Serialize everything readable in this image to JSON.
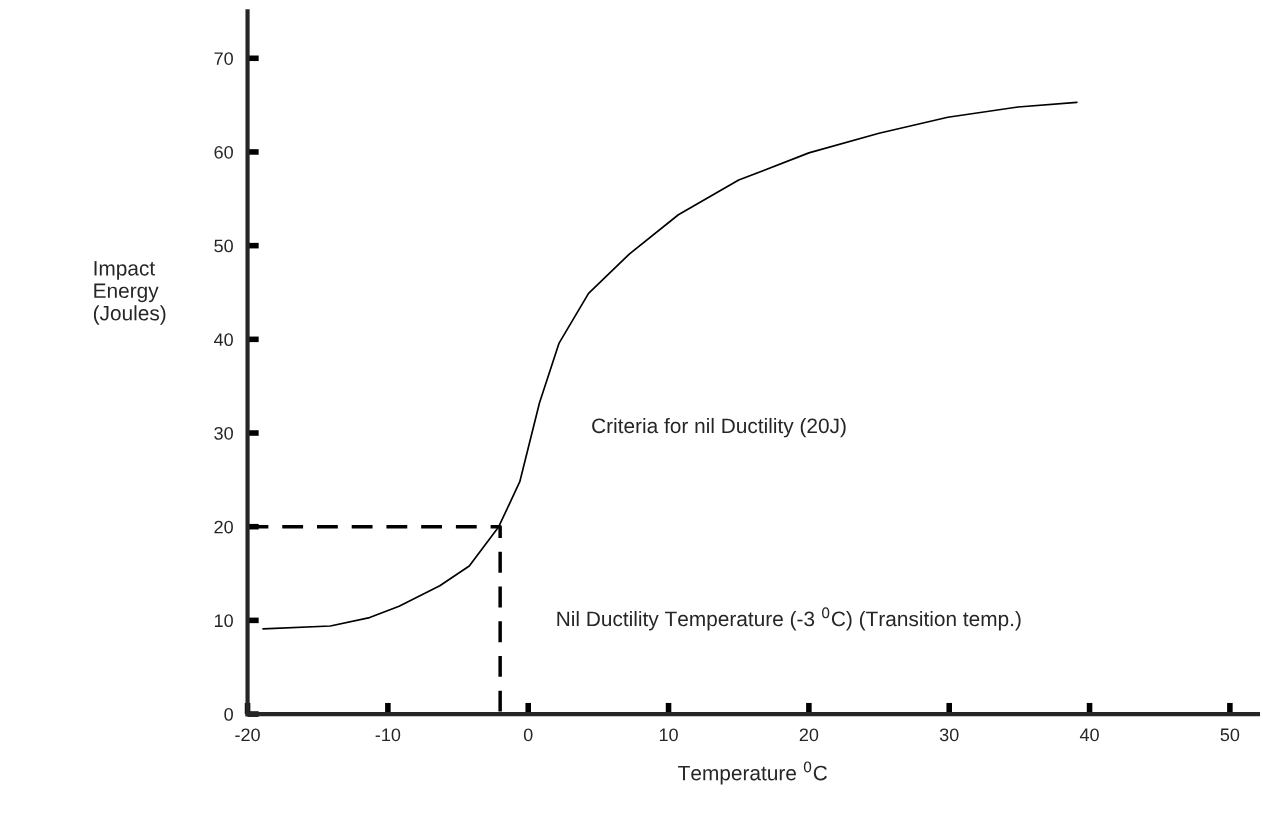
{
  "chart_data": {
    "type": "line",
    "xlabel": "Temperature $^{0}$C",
    "ylabel": "Impact\nEnergy\n(Joules)",
    "series": [
      {
        "color": "#000000",
        "line_style": "solid",
        "x": [
          -18.9,
          -14.1,
          -11.3,
          -9.2,
          -6.3,
          -4.2,
          -2.1,
          -0.6,
          0.8,
          2.2,
          4.3,
          7.2,
          10.7,
          15,
          20,
          25,
          29.9,
          34.9,
          39.1
        ],
        "values": [
          9.1,
          9.4,
          10.3,
          11.5,
          13.7,
          15.8,
          20,
          24.8,
          33.2,
          39.6,
          44.9,
          49.1,
          53.3,
          57,
          59.9,
          62,
          63.7,
          64.8,
          65.3
        ]
      },
      {
        "color": "#000000",
        "line_style": "dashed",
        "x": [
          -20,
          -2,
          -2
        ],
        "values": [
          20,
          20,
          0
        ]
      }
    ],
    "annotations": [
      "Criteria for nil Ductility (20J)",
      "Nil Ductility Temperature (-3 $^{0}$C) (Transition temp.)"
    ],
    "xlim": [
      -20,
      52
    ],
    "ylim": [
      0,
      75
    ],
    "xticks": [
      -20,
      -10,
      0,
      10,
      20,
      30,
      40,
      50
    ],
    "yticks": [
      0,
      10,
      20,
      30,
      40,
      50,
      60,
      70
    ],
    "grid": false,
    "legend": false,
    "marker": "none"
  }
}
